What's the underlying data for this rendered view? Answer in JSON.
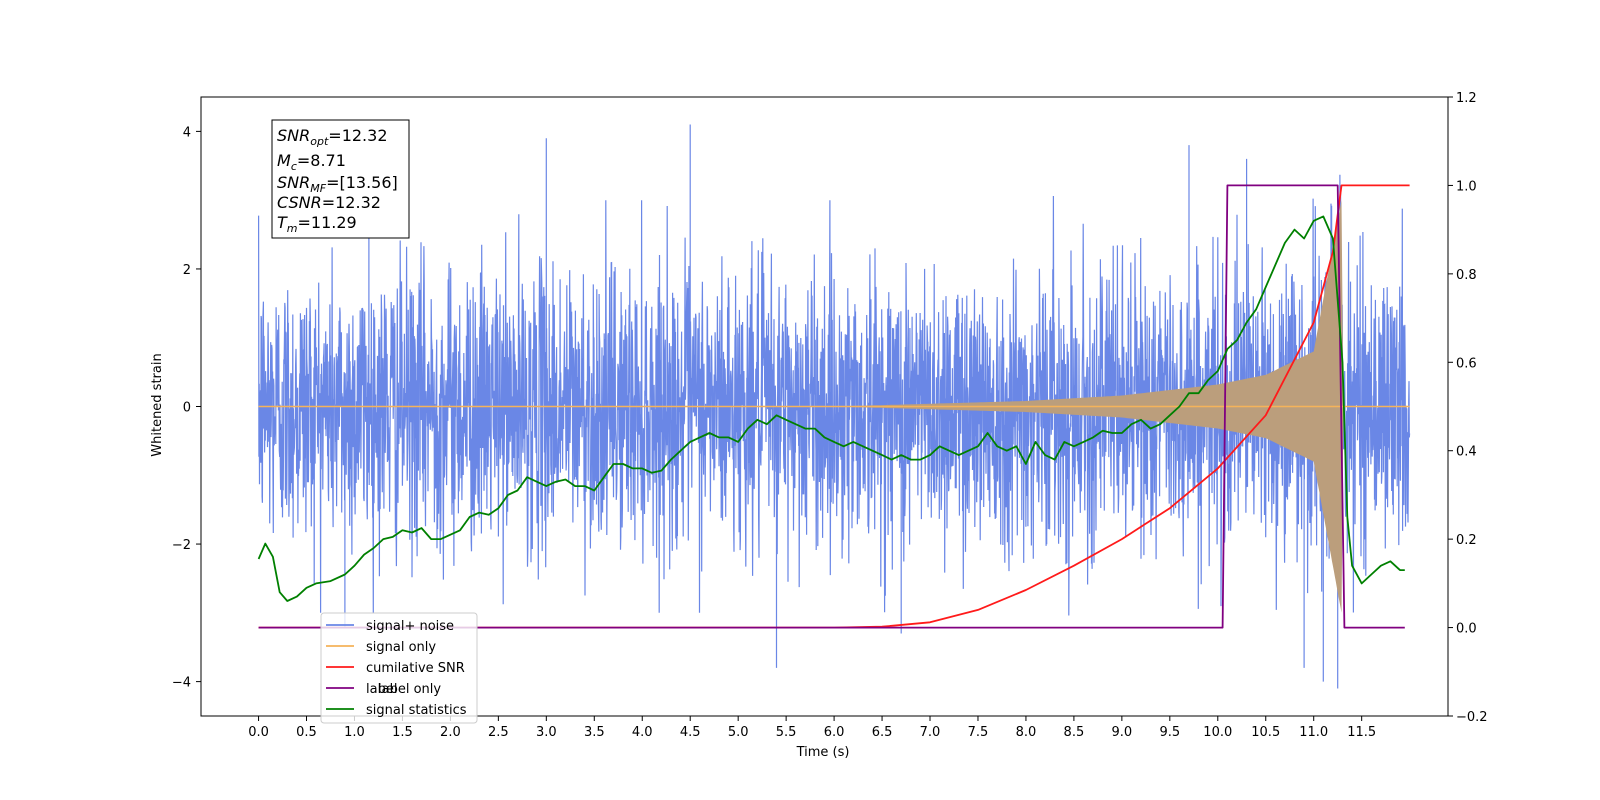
{
  "chart_data": {
    "type": "line",
    "xlabel": "Time (s)",
    "ylabel": "Whitened strain",
    "xlim": [
      -0.6,
      12.4
    ],
    "ylim": [
      -4.5,
      4.5
    ],
    "y2lim": [
      -0.2,
      1.2
    ],
    "x_ticks": [
      "0.0",
      "0.5",
      "1.0",
      "1.5",
      "2.0",
      "2.5",
      "3.0",
      "3.5",
      "4.0",
      "4.5",
      "5.0",
      "5.5",
      "6.0",
      "6.5",
      "7.0",
      "7.5",
      "8.0",
      "8.5",
      "9.0",
      "9.5",
      "10.0",
      "10.5",
      "11.0",
      "11.5"
    ],
    "y_ticks": [
      "4",
      "2",
      "0",
      "−2",
      "−4"
    ],
    "y2_ticks": [
      "1.2",
      "1.0",
      "0.8",
      "0.6",
      "0.4",
      "0.2",
      "0.0",
      "−0.2"
    ],
    "colors": {
      "noise": "#6a87e6",
      "signal": "#f5b35a",
      "overlap": "#bb9e7c",
      "cumulative": "#ff1a1a",
      "label": "#800080",
      "statistics": "#008000"
    },
    "info_box": {
      "snr_opt": {
        "base": "SNR",
        "sub": "opt",
        "value": "=12.32"
      },
      "mc": {
        "base": "M",
        "sub": "c",
        "value": "=8.71"
      },
      "snr_mf": {
        "base": "SNR",
        "sub": "MF",
        "value": "=[13.56]"
      },
      "csnr": {
        "base": "CSNR",
        "value": "=12.32"
      },
      "tm": {
        "base": "T",
        "sub": "m",
        "value": "=11.29"
      }
    },
    "legend": [
      "signal+ noise",
      "signal only",
      "cumilative SNR",
      "label",
      "label only",
      "signal statistics"
    ],
    "series": [
      {
        "name": "signal+ noise",
        "axis": "left",
        "kind": "noise",
        "x_range": [
          0,
          12.0
        ],
        "amplitude_sigma": 1.0,
        "peaks": [
          [
            0.9,
            -3.2
          ],
          [
            1.15,
            2.7
          ],
          [
            3.0,
            3.9
          ],
          [
            4.5,
            4.1
          ],
          [
            5.4,
            -3.8
          ],
          [
            6.7,
            -3.3
          ],
          [
            9.7,
            3.8
          ],
          [
            10.3,
            3.6
          ],
          [
            10.9,
            -3.8
          ],
          [
            11.1,
            -4.0
          ],
          [
            11.25,
            -4.1
          ]
        ]
      },
      {
        "name": "signal only",
        "axis": "left",
        "kind": "chirp",
        "x_range": [
          0,
          12.0
        ],
        "merger_time": 11.29,
        "envelope": [
          [
            6.0,
            0.0
          ],
          [
            7.0,
            0.04
          ],
          [
            8.0,
            0.08
          ],
          [
            9.0,
            0.16
          ],
          [
            9.5,
            0.24
          ],
          [
            10.0,
            0.32
          ],
          [
            10.5,
            0.46
          ],
          [
            11.0,
            0.8
          ],
          [
            11.29,
            3.0
          ],
          [
            11.3,
            0.0
          ],
          [
            12.0,
            0.0
          ]
        ]
      },
      {
        "name": "cumilative SNR",
        "axis": "right",
        "x": [
          0.0,
          6.0,
          6.5,
          7.0,
          7.5,
          8.0,
          8.5,
          9.0,
          9.5,
          10.0,
          10.5,
          11.0,
          11.2,
          11.29,
          12.0
        ],
        "y": [
          0.0,
          0.0,
          0.002,
          0.012,
          0.04,
          0.085,
          0.14,
          0.2,
          0.27,
          0.36,
          0.48,
          0.69,
          0.85,
          1.0,
          1.0
        ]
      },
      {
        "name": "label",
        "axis": "right",
        "x": [
          0.0,
          10.05,
          10.1,
          11.25,
          11.32,
          11.95
        ],
        "y": [
          0.0,
          0.0,
          1.0,
          1.0,
          0.0,
          0.0
        ]
      },
      {
        "name": "signal statistics",
        "axis": "right",
        "x": [
          0.0,
          0.07,
          0.15,
          0.22,
          0.3,
          0.4,
          0.5,
          0.6,
          0.75,
          0.9,
          1.0,
          1.1,
          1.2,
          1.3,
          1.4,
          1.5,
          1.6,
          1.7,
          1.8,
          1.9,
          2.0,
          2.1,
          2.2,
          2.3,
          2.4,
          2.5,
          2.6,
          2.7,
          2.8,
          2.9,
          3.0,
          3.1,
          3.2,
          3.3,
          3.4,
          3.5,
          3.6,
          3.7,
          3.8,
          3.9,
          4.0,
          4.1,
          4.2,
          4.3,
          4.4,
          4.5,
          4.6,
          4.7,
          4.8,
          4.9,
          5.0,
          5.1,
          5.2,
          5.3,
          5.4,
          5.5,
          5.6,
          5.7,
          5.8,
          5.9,
          6.0,
          6.1,
          6.2,
          6.3,
          6.4,
          6.5,
          6.6,
          6.7,
          6.8,
          6.9,
          7.0,
          7.1,
          7.2,
          7.3,
          7.4,
          7.5,
          7.6,
          7.7,
          7.8,
          7.9,
          8.0,
          8.1,
          8.2,
          8.3,
          8.4,
          8.5,
          8.6,
          8.7,
          8.8,
          8.9,
          9.0,
          9.1,
          9.2,
          9.3,
          9.4,
          9.5,
          9.6,
          9.7,
          9.8,
          9.9,
          10.0,
          10.1,
          10.2,
          10.3,
          10.4,
          10.5,
          10.6,
          10.7,
          10.8,
          10.9,
          11.0,
          11.1,
          11.2,
          11.3,
          11.35,
          11.4,
          11.5,
          11.6,
          11.7,
          11.8,
          11.9,
          11.95
        ],
        "y": [
          0.155,
          0.19,
          0.16,
          0.08,
          0.06,
          0.07,
          0.09,
          0.1,
          0.105,
          0.12,
          0.14,
          0.165,
          0.18,
          0.2,
          0.205,
          0.22,
          0.215,
          0.225,
          0.2,
          0.2,
          0.21,
          0.22,
          0.25,
          0.26,
          0.255,
          0.27,
          0.3,
          0.31,
          0.34,
          0.33,
          0.32,
          0.33,
          0.335,
          0.32,
          0.32,
          0.31,
          0.34,
          0.37,
          0.37,
          0.36,
          0.36,
          0.35,
          0.355,
          0.38,
          0.4,
          0.42,
          0.43,
          0.44,
          0.43,
          0.43,
          0.42,
          0.45,
          0.47,
          0.46,
          0.48,
          0.47,
          0.46,
          0.45,
          0.45,
          0.43,
          0.42,
          0.41,
          0.42,
          0.41,
          0.4,
          0.39,
          0.38,
          0.39,
          0.38,
          0.38,
          0.39,
          0.41,
          0.4,
          0.39,
          0.4,
          0.41,
          0.44,
          0.41,
          0.4,
          0.41,
          0.37,
          0.42,
          0.39,
          0.38,
          0.42,
          0.41,
          0.42,
          0.43,
          0.445,
          0.44,
          0.44,
          0.46,
          0.47,
          0.45,
          0.46,
          0.48,
          0.5,
          0.53,
          0.53,
          0.56,
          0.58,
          0.63,
          0.65,
          0.69,
          0.72,
          0.77,
          0.82,
          0.87,
          0.9,
          0.88,
          0.92,
          0.93,
          0.88,
          0.6,
          0.25,
          0.14,
          0.1,
          0.12,
          0.14,
          0.15,
          0.13,
          0.13
        ]
      }
    ]
  }
}
